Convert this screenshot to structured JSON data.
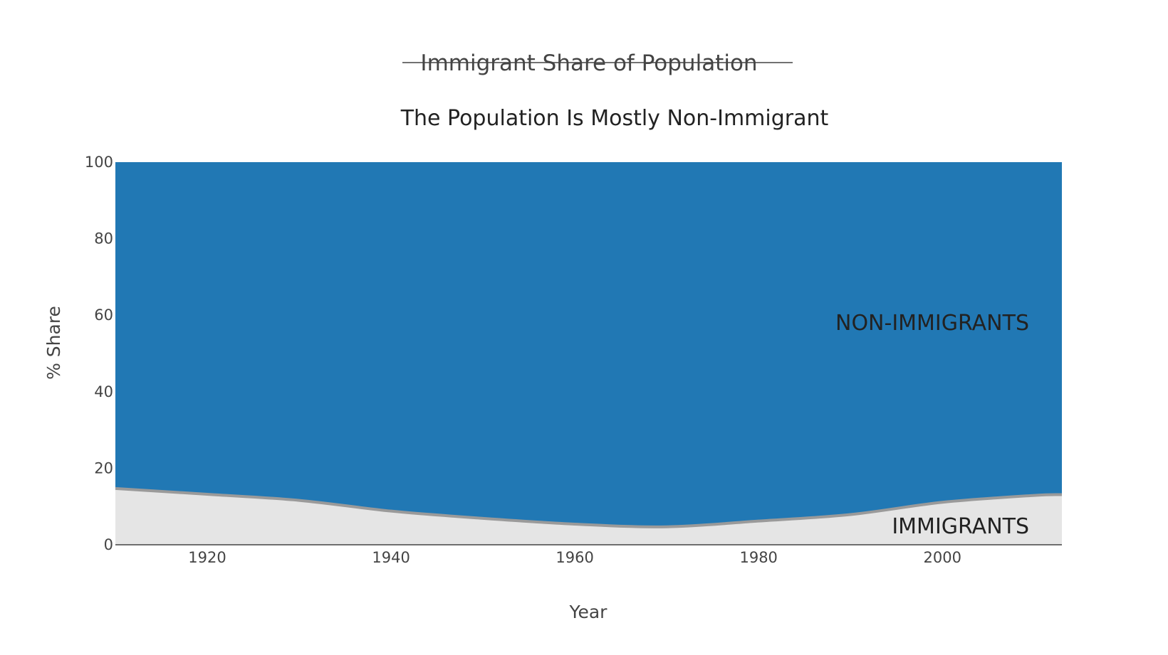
{
  "chart_data": {
    "type": "area",
    "stacked": true,
    "header": "Immigrant Share of Population",
    "title": "The Population Is Mostly Non-Immigrant",
    "xlabel": "Year",
    "ylabel": "% Share",
    "xlim": [
      1910,
      2013
    ],
    "ylim": [
      0,
      100
    ],
    "xticks": [
      "1920",
      "1940",
      "1960",
      "1980",
      "2000"
    ],
    "yticks": [
      "0",
      "20",
      "40",
      "60",
      "80",
      "100"
    ],
    "x": [
      1910,
      1920,
      1930,
      1940,
      1950,
      1960,
      1970,
      1980,
      1990,
      2000,
      2010,
      2013
    ],
    "series": [
      {
        "name": "IMMIGRANTS",
        "color": "#e5e5e5",
        "line_color": "#9a9a9a",
        "values": [
          14.7,
          13.2,
          11.6,
          8.8,
          6.9,
          5.4,
          4.7,
          6.2,
          7.9,
          11.1,
          12.9,
          13.1
        ]
      },
      {
        "name": "NON-IMMIGRANTS",
        "color": "#2178b4",
        "values": [
          85.3,
          86.8,
          88.4,
          91.2,
          93.1,
          94.6,
          95.3,
          93.8,
          92.1,
          88.9,
          87.1,
          86.9
        ]
      }
    ],
    "annotations": [
      {
        "text": "NON-IMMIGRANTS",
        "x": 2007,
        "y": 58
      },
      {
        "text": "IMMIGRANTS",
        "x": 2007,
        "y": 5
      }
    ]
  }
}
